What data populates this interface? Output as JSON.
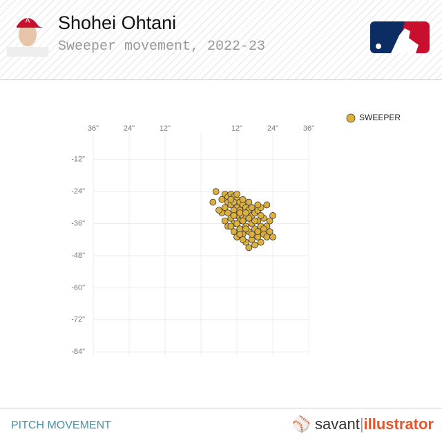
{
  "chart_data": {
    "type": "scatter",
    "title": "Shohei Ohtani",
    "subtitle": "Sweeper movement, 2022-23",
    "xlim": [
      -36,
      36
    ],
    "ylim": [
      -2,
      -85.5
    ],
    "grid": true,
    "legend": "top-right",
    "xticks": [
      {
        "value": -36,
        "label": "36\""
      },
      {
        "value": -24,
        "label": "24\""
      },
      {
        "value": -12,
        "label": "12\""
      },
      {
        "value": 0,
        "label": null
      },
      {
        "value": 12,
        "label": "12\""
      },
      {
        "value": 24,
        "label": "24\""
      },
      {
        "value": 36,
        "label": "36\""
      }
    ],
    "yticks": [
      {
        "value": -12,
        "label": "-12\""
      },
      {
        "value": -24,
        "label": "-24\""
      },
      {
        "value": -36,
        "label": "-36\""
      },
      {
        "value": -48,
        "label": "-48\""
      },
      {
        "value": -60,
        "label": "-60\""
      },
      {
        "value": -72,
        "label": "-72\""
      },
      {
        "value": -84,
        "label": "-84\""
      }
    ],
    "series": [
      {
        "name": "SWEEPER",
        "color": "#dcb03e",
        "x": [
          5,
          4,
          8,
          9,
          10,
          11,
          12,
          9,
          10,
          11,
          13,
          14,
          12,
          8,
          7,
          9,
          11,
          13,
          15,
          16,
          14,
          12,
          10,
          8,
          9,
          11,
          13,
          15,
          17,
          18,
          19,
          20,
          22,
          24,
          23,
          21,
          19,
          17,
          15,
          13,
          11,
          12,
          14,
          16,
          18,
          20,
          22,
          23,
          21,
          19,
          17,
          15,
          18,
          20,
          22,
          24,
          16,
          14,
          10,
          12,
          14,
          16,
          18,
          20,
          11,
          13,
          15,
          17,
          19,
          16,
          14,
          12,
          10,
          7,
          6,
          21,
          19,
          17,
          15,
          13
        ],
        "values": [
          -24,
          -28,
          -25,
          -26,
          -25,
          -26,
          -27,
          -28,
          -29,
          -28,
          -28,
          -29,
          -30,
          -30,
          -32,
          -32,
          -31,
          -31,
          -30,
          -31,
          -33,
          -33,
          -34,
          -35,
          -37,
          -36,
          -35,
          -34,
          -33,
          -32,
          -31,
          -30,
          -29,
          -33,
          -35,
          -34,
          -35,
          -36,
          -37,
          -38,
          -39,
          -41,
          -40,
          -39,
          -38,
          -37,
          -37,
          -39,
          -40,
          -41,
          -42,
          -43,
          -44,
          -43,
          -41,
          -41,
          -45,
          -42,
          -37,
          -36,
          -35,
          -34,
          -35,
          -33,
          -33,
          -32,
          -32,
          -30,
          -29,
          -28,
          -27,
          -25,
          -27,
          -27,
          -31,
          -38,
          -39,
          -40,
          -38,
          -40
        ]
      }
    ]
  },
  "footer": {
    "label": "PITCH MOVEMENT",
    "brand": "savant",
    "brand_tool": "illustrator"
  }
}
